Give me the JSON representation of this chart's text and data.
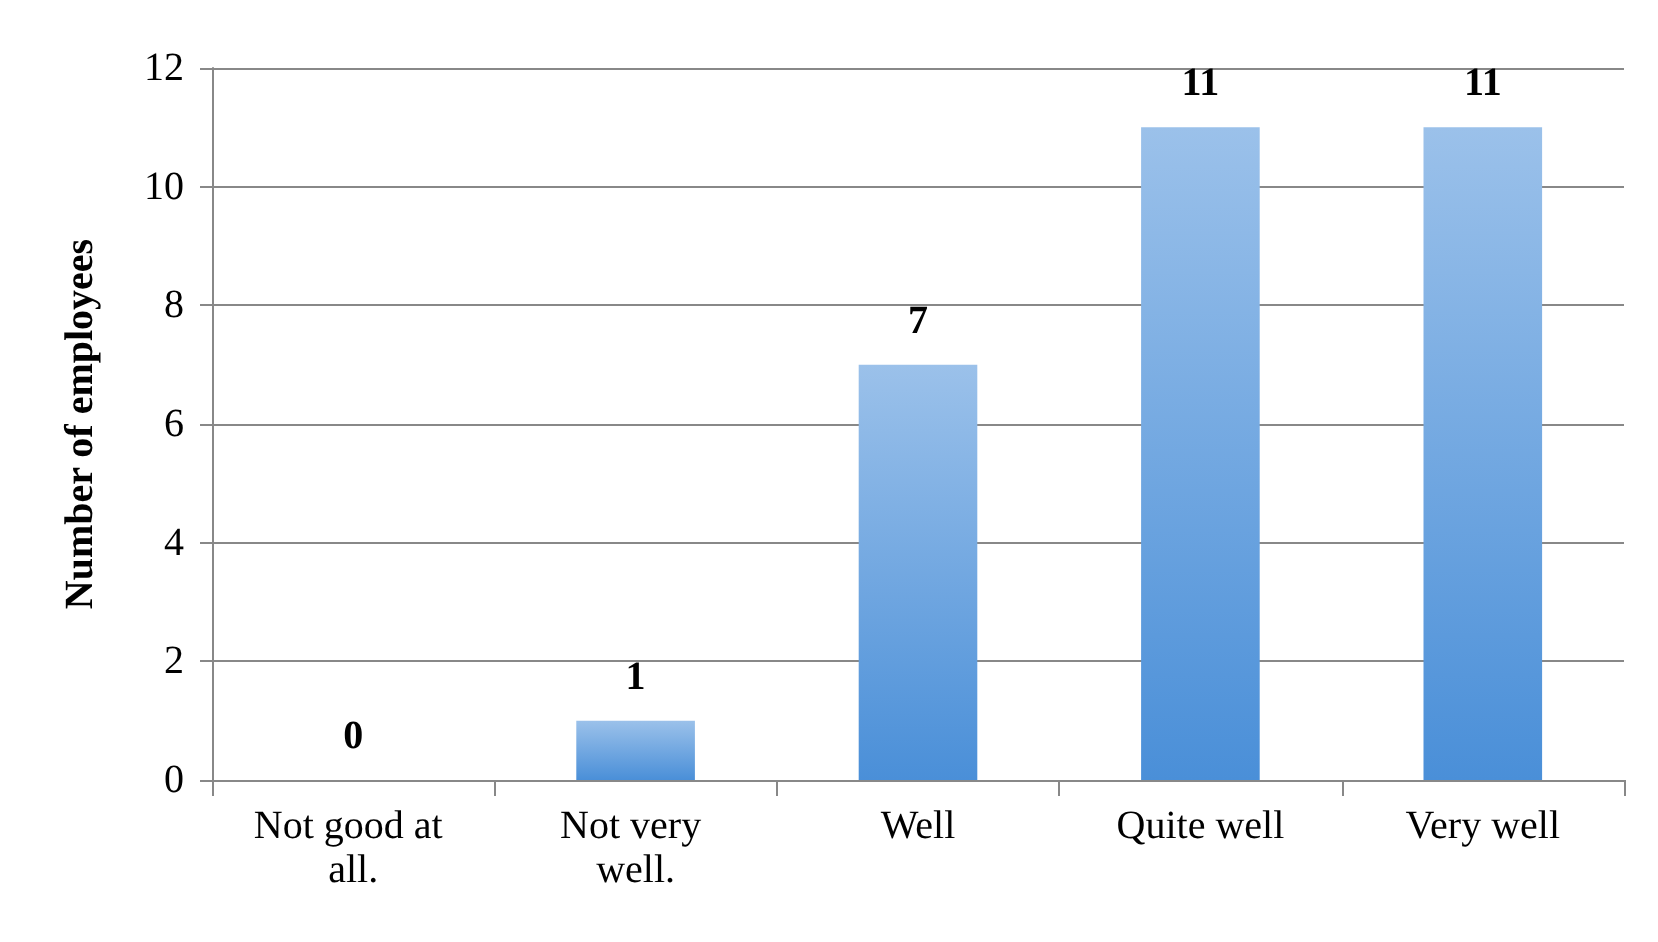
{
  "chart_data": {
    "type": "bar",
    "categories": [
      "Not good at all.",
      "Not very well.",
      "Well",
      "Quite well",
      "Very well"
    ],
    "values": [
      0,
      1,
      7,
      11,
      11
    ],
    "color": "#4a8fd8",
    "ylabel": "Number of employees",
    "ylim": [
      0,
      12
    ],
    "yticks": [
      0,
      2,
      4,
      6,
      8,
      10,
      12
    ],
    "grid": "y",
    "data_labels": true
  }
}
